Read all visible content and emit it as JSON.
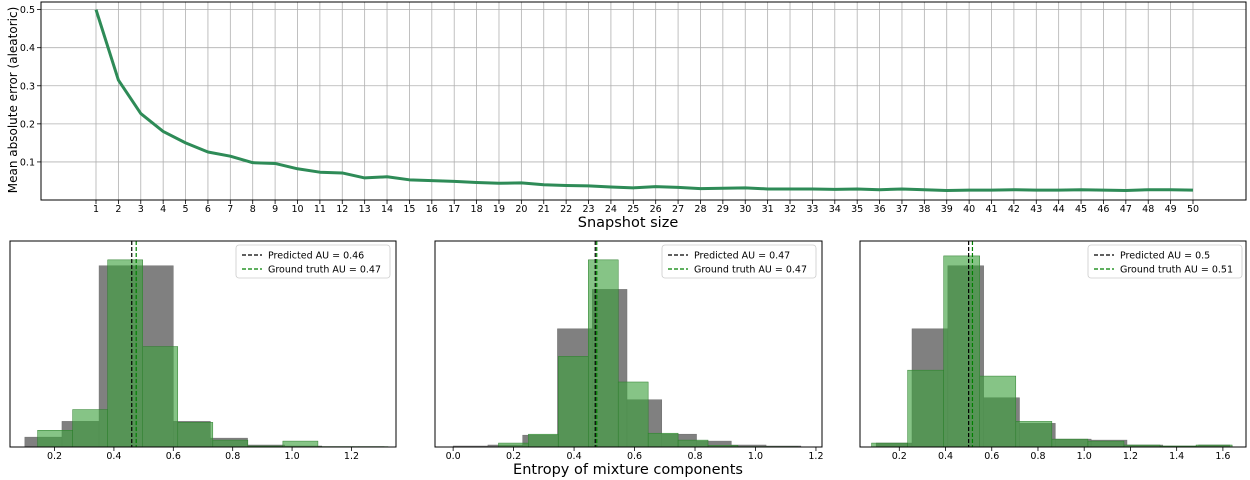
{
  "colors": {
    "line": "#2e8b57",
    "pred_hist": "#808080",
    "gt_hist": "#3ca03c",
    "pred_line": "#000000",
    "gt_line": "#008000",
    "grid": "#b0b0b0"
  },
  "chart_data": [
    {
      "type": "line",
      "xlabel": "Snapshot size",
      "ylabel": "Mean absolute error (aleatoric)",
      "grid": true,
      "x": [
        1,
        2,
        3,
        4,
        5,
        6,
        7,
        8,
        9,
        10,
        11,
        12,
        13,
        14,
        15,
        16,
        17,
        18,
        19,
        20,
        21,
        22,
        23,
        24,
        25,
        26,
        27,
        28,
        29,
        30,
        31,
        32,
        33,
        34,
        35,
        36,
        37,
        38,
        39,
        40,
        41,
        42,
        43,
        44,
        45,
        46,
        47,
        48,
        49,
        50
      ],
      "xticklabels": [
        "1",
        "2",
        "3",
        "4",
        "5",
        "6",
        "7",
        "8",
        "9",
        "10",
        "11",
        "12",
        "13",
        "14",
        "15",
        "16",
        "17",
        "18",
        "19",
        "20",
        "21",
        "22",
        "23",
        "24",
        "25",
        "26",
        "27",
        "28",
        "29",
        "30",
        "31",
        "32",
        "33",
        "34",
        "35",
        "36",
        "37",
        "38",
        "39",
        "40",
        "41",
        "42",
        "43",
        "44",
        "45",
        "46",
        "47",
        "48",
        "49",
        "50"
      ],
      "values": [
        0.5,
        0.315,
        0.227,
        0.18,
        0.15,
        0.126,
        0.115,
        0.098,
        0.096,
        0.082,
        0.073,
        0.071,
        0.058,
        0.061,
        0.053,
        0.051,
        0.049,
        0.046,
        0.044,
        0.045,
        0.04,
        0.038,
        0.037,
        0.034,
        0.032,
        0.035,
        0.033,
        0.03,
        0.031,
        0.032,
        0.029,
        0.029,
        0.029,
        0.028,
        0.029,
        0.027,
        0.029,
        0.027,
        0.025,
        0.026,
        0.026,
        0.027,
        0.026,
        0.026,
        0.027,
        0.026,
        0.025,
        0.027,
        0.027,
        0.026
      ],
      "yticks": [
        "0.1",
        "0.2",
        "0.3",
        "0.4",
        "0.5"
      ],
      "ylim": [
        0,
        0.52
      ]
    },
    {
      "type": "histogram",
      "xlim": [
        0.05,
        1.35
      ],
      "xticks": [
        "0.2",
        "0.4",
        "0.6",
        "0.8",
        "1.0",
        "1.2"
      ],
      "ymax": 1.0,
      "pred_bins": [
        [
          0.1,
          0.225,
          0.05
        ],
        [
          0.225,
          0.35,
          0.13
        ],
        [
          0.35,
          0.475,
          0.92
        ],
        [
          0.475,
          0.6,
          0.92
        ],
        [
          0.6,
          0.725,
          0.13
        ],
        [
          0.725,
          0.85,
          0.045
        ],
        [
          0.85,
          0.975,
          0.01
        ],
        [
          0.975,
          1.1,
          0.005
        ],
        [
          1.1,
          1.225,
          0.002
        ],
        [
          1.225,
          1.31,
          0.002
        ]
      ],
      "gt_bins": [
        [
          0.143,
          0.261,
          0.085
        ],
        [
          0.261,
          0.379,
          0.19
        ],
        [
          0.379,
          0.497,
          0.95
        ],
        [
          0.497,
          0.615,
          0.51
        ],
        [
          0.615,
          0.733,
          0.125
        ],
        [
          0.733,
          0.851,
          0.035
        ],
        [
          0.851,
          0.969,
          0.005
        ],
        [
          0.969,
          1.087,
          0.03
        ],
        [
          1.087,
          1.205,
          0.002
        ],
        [
          1.205,
          1.323,
          0.002
        ]
      ],
      "pred_mean": 0.46,
      "gt_mean": 0.47,
      "legend": {
        "pred": "Predicted AU = 0.46",
        "gt": "Ground truth AU = 0.47"
      }
    },
    {
      "type": "histogram",
      "xlabel": "Entropy of mixture components",
      "xlim": [
        -0.06,
        1.22
      ],
      "xticks": [
        "0.0",
        "0.2",
        "0.4",
        "0.6",
        "0.8",
        "1.0",
        "1.2"
      ],
      "ymax": 1.0,
      "pred_bins": [
        [
          0.0,
          0.115,
          0.005
        ],
        [
          0.115,
          0.23,
          0.01
        ],
        [
          0.23,
          0.345,
          0.06
        ],
        [
          0.345,
          0.46,
          0.6
        ],
        [
          0.46,
          0.575,
          0.8
        ],
        [
          0.575,
          0.69,
          0.24
        ],
        [
          0.69,
          0.805,
          0.065
        ],
        [
          0.805,
          0.92,
          0.03
        ],
        [
          0.92,
          1.035,
          0.01
        ],
        [
          1.035,
          1.15,
          0.005
        ]
      ],
      "gt_bins": [
        [
          0.15,
          0.249,
          0.02
        ],
        [
          0.249,
          0.348,
          0.065
        ],
        [
          0.348,
          0.447,
          0.46
        ],
        [
          0.447,
          0.546,
          0.95
        ],
        [
          0.546,
          0.645,
          0.33
        ],
        [
          0.645,
          0.744,
          0.07
        ],
        [
          0.744,
          0.843,
          0.035
        ],
        [
          0.843,
          0.942,
          0.008
        ],
        [
          0.942,
          1.041,
          0.002
        ],
        [
          1.041,
          1.14,
          0.002
        ]
      ],
      "pred_mean": 0.47,
      "gt_mean": 0.47,
      "legend": {
        "pred": "Predicted AU = 0.47",
        "gt": "Ground truth AU = 0.47"
      }
    },
    {
      "type": "histogram",
      "xlim": [
        0.03,
        1.7
      ],
      "xticks": [
        "0.2",
        "0.4",
        "0.6",
        "0.8",
        "1.0",
        "1.2",
        "1.4",
        "1.6"
      ],
      "ymax": 1.0,
      "pred_bins": [
        [
          0.1,
          0.255,
          0.02
        ],
        [
          0.255,
          0.41,
          0.6
        ],
        [
          0.41,
          0.565,
          0.92
        ],
        [
          0.565,
          0.72,
          0.25
        ],
        [
          0.72,
          0.875,
          0.12
        ],
        [
          0.875,
          1.03,
          0.04
        ],
        [
          1.03,
          1.185,
          0.035
        ],
        [
          1.185,
          1.34,
          0.01
        ],
        [
          1.34,
          1.495,
          0.005
        ],
        [
          1.495,
          1.63,
          0.01
        ]
      ],
      "gt_bins": [
        [
          0.08,
          0.236,
          0.02
        ],
        [
          0.236,
          0.392,
          0.39
        ],
        [
          0.392,
          0.548,
          0.97
        ],
        [
          0.548,
          0.704,
          0.36
        ],
        [
          0.704,
          0.86,
          0.13
        ],
        [
          0.86,
          1.016,
          0.04
        ],
        [
          1.016,
          1.172,
          0.03
        ],
        [
          1.172,
          1.328,
          0.01
        ],
        [
          1.328,
          1.484,
          0.005
        ],
        [
          1.484,
          1.64,
          0.01
        ]
      ],
      "pred_mean": 0.5,
      "gt_mean": 0.51,
      "legend": {
        "pred": "Predicted AU = 0.5",
        "gt": "Ground truth AU = 0.51"
      }
    }
  ]
}
